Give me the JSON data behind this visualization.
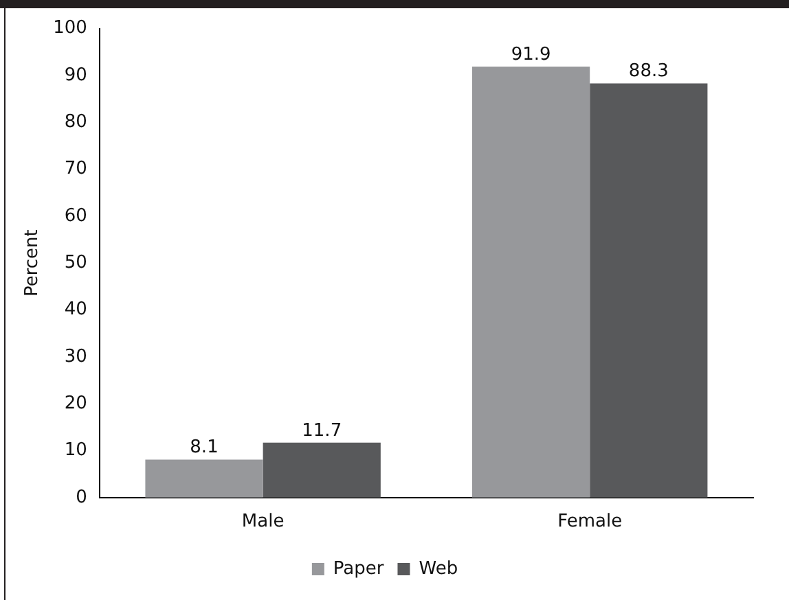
{
  "chart_data": {
    "type": "bar",
    "ylabel": "Percent",
    "categories": [
      "Male",
      "Female"
    ],
    "series": [
      {
        "name": "Paper",
        "color": "#97989b",
        "values": [
          8.1,
          91.9
        ]
      },
      {
        "name": "Web",
        "color": "#58595b",
        "values": [
          11.7,
          88.3
        ]
      }
    ],
    "ylim": [
      0,
      100
    ],
    "yticks": [
      0,
      10,
      20,
      30,
      40,
      50,
      60,
      70,
      80,
      90,
      100
    ],
    "grid": false,
    "legend": "bottom",
    "data_labels": true
  }
}
